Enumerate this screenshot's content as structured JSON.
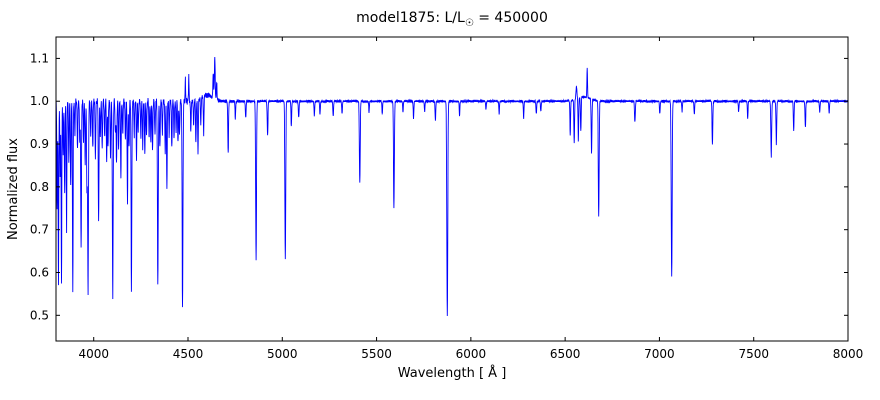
{
  "chart_data": {
    "type": "line",
    "title_prefix": "model1875: L/L",
    "title_sub": "☉",
    "title_suffix": " = 450000",
    "xlabel": "Wavelength [ Å ]",
    "ylabel": "Normalized flux",
    "xlim": [
      3800,
      8000
    ],
    "ylim": [
      0.44,
      1.15
    ],
    "xticks": [
      4000,
      4500,
      5000,
      5500,
      6000,
      6500,
      7000,
      7500,
      8000
    ],
    "yticks": [
      0.5,
      0.6,
      0.7,
      0.8,
      0.9,
      1.0,
      1.1
    ],
    "line_color": "#0000ff",
    "axis_color": "#000000",
    "background_color": "#ffffff",
    "continuum": 1.0,
    "noise": {
      "base": 0.003,
      "blue_extra": 0.0065,
      "transition": 4650,
      "transition_width": 80
    },
    "absorption_lines": [
      [
        3806,
        0.75,
        1.8
      ],
      [
        3813,
        0.57,
        1.8
      ],
      [
        3822,
        0.82,
        1.8
      ],
      [
        3829,
        0.58,
        1.8
      ],
      [
        3838,
        0.88,
        1.8
      ],
      [
        3846,
        0.78,
        1.8
      ],
      [
        3856,
        0.7,
        1.8
      ],
      [
        3868,
        0.86,
        1.8
      ],
      [
        3878,
        0.8,
        1.8
      ],
      [
        3889,
        0.56,
        1.8
      ],
      [
        3900,
        0.92,
        1.8
      ],
      [
        3914,
        0.89,
        1.8
      ],
      [
        3926,
        0.9,
        1.8
      ],
      [
        3933,
        0.66,
        2.0
      ],
      [
        3946,
        0.91,
        1.8
      ],
      [
        3955,
        0.85,
        1.8
      ],
      [
        3964,
        0.8,
        1.8
      ],
      [
        3970,
        0.55,
        2.2
      ],
      [
        3984,
        0.92,
        1.8
      ],
      [
        3995,
        0.89,
        1.8
      ],
      [
        4009,
        0.87,
        1.8
      ],
      [
        4026,
        0.72,
        2.0
      ],
      [
        4035,
        0.92,
        1.8
      ],
      [
        4045,
        0.89,
        1.8
      ],
      [
        4058,
        0.91,
        1.8
      ],
      [
        4069,
        0.86,
        1.8
      ],
      [
        4076,
        0.89,
        1.8
      ],
      [
        4089,
        0.87,
        1.8
      ],
      [
        4101,
        0.54,
        2.2
      ],
      [
        4115,
        0.92,
        1.8
      ],
      [
        4121,
        0.85,
        1.8
      ],
      [
        4132,
        0.89,
        1.8
      ],
      [
        4144,
        0.82,
        1.8
      ],
      [
        4154,
        0.92,
        1.8
      ],
      [
        4168,
        0.91,
        1.8
      ],
      [
        4179,
        0.76,
        1.8
      ],
      [
        4187,
        0.89,
        1.8
      ],
      [
        4200,
        0.56,
        2.0
      ],
      [
        4215,
        0.92,
        1.8
      ],
      [
        4227,
        0.87,
        1.8
      ],
      [
        4236,
        0.93,
        1.8
      ],
      [
        4250,
        0.91,
        1.8
      ],
      [
        4260,
        0.89,
        1.8
      ],
      [
        4271,
        0.88,
        1.8
      ],
      [
        4280,
        0.92,
        1.8
      ],
      [
        4294,
        0.91,
        1.8
      ],
      [
        4303,
        0.9,
        1.8
      ],
      [
        4312,
        0.88,
        1.8
      ],
      [
        4325,
        0.92,
        1.8
      ],
      [
        4340,
        0.57,
        2.2
      ],
      [
        4351,
        0.89,
        1.8
      ],
      [
        4364,
        0.92,
        1.8
      ],
      [
        4379,
        0.88,
        1.8
      ],
      [
        4388,
        0.8,
        1.8
      ],
      [
        4400,
        0.92,
        1.8
      ],
      [
        4414,
        0.89,
        1.8
      ],
      [
        4426,
        0.91,
        1.8
      ],
      [
        4437,
        0.93,
        1.8
      ],
      [
        4447,
        0.9,
        1.8
      ],
      [
        4455,
        0.92,
        1.8
      ],
      [
        4471,
        0.515,
        2.2
      ],
      [
        4515,
        0.93,
        1.8
      ],
      [
        4530,
        0.94,
        1.8
      ],
      [
        4542,
        0.9,
        1.8
      ],
      [
        4553,
        0.88,
        1.8
      ],
      [
        4568,
        0.94,
        1.8
      ],
      [
        4583,
        0.91,
        1.8
      ],
      [
        4713,
        0.88,
        2.0
      ],
      [
        4751,
        0.96,
        1.8
      ],
      [
        4806,
        0.96,
        1.8
      ],
      [
        4861,
        0.63,
        2.2
      ],
      [
        4922,
        0.92,
        2.0
      ],
      [
        5016,
        0.63,
        2.2
      ],
      [
        5048,
        0.94,
        1.8
      ],
      [
        5087,
        0.96,
        1.8
      ],
      [
        5170,
        0.965,
        1.8
      ],
      [
        5200,
        0.97,
        1.8
      ],
      [
        5270,
        0.965,
        1.8
      ],
      [
        5317,
        0.97,
        1.8
      ],
      [
        5411,
        0.81,
        2.2
      ],
      [
        5460,
        0.975,
        1.8
      ],
      [
        5530,
        0.97,
        1.8
      ],
      [
        5592,
        0.75,
        2.2
      ],
      [
        5640,
        0.975,
        1.8
      ],
      [
        5696,
        0.96,
        1.8
      ],
      [
        5755,
        0.975,
        1.8
      ],
      [
        5812,
        0.955,
        1.8
      ],
      [
        5875,
        0.5,
        2.5
      ],
      [
        5940,
        0.965,
        1.8
      ],
      [
        6080,
        0.98,
        1.8
      ],
      [
        6150,
        0.97,
        1.8
      ],
      [
        6280,
        0.96,
        1.8
      ],
      [
        6347,
        0.97,
        1.8
      ],
      [
        6371,
        0.975,
        1.8
      ],
      [
        6527,
        0.92,
        1.8
      ],
      [
        6548,
        0.9,
        1.8
      ],
      [
        6570,
        0.9,
        1.8
      ],
      [
        6583,
        0.92,
        1.8
      ],
      [
        6640,
        0.87,
        2.0
      ],
      [
        6678,
        0.73,
        2.2
      ],
      [
        6870,
        0.95,
        2.0
      ],
      [
        7002,
        0.97,
        1.8
      ],
      [
        7065,
        0.59,
        2.4
      ],
      [
        7120,
        0.975,
        1.8
      ],
      [
        7185,
        0.97,
        1.8
      ],
      [
        7281,
        0.9,
        2.0
      ],
      [
        7420,
        0.975,
        1.8
      ],
      [
        7468,
        0.96,
        1.8
      ],
      [
        7593,
        0.87,
        2.2
      ],
      [
        7620,
        0.9,
        2.0
      ],
      [
        7712,
        0.93,
        1.8
      ],
      [
        7774,
        0.94,
        2.0
      ],
      [
        7850,
        0.975,
        1.8
      ],
      [
        7900,
        0.97,
        1.8
      ]
    ],
    "emission_lines": [
      [
        4486,
        1.05,
        1.5
      ],
      [
        4504,
        1.06,
        1.5
      ],
      [
        4600,
        1.015,
        28
      ],
      [
        4634,
        1.06,
        2.0
      ],
      [
        4642,
        1.1,
        2.0
      ],
      [
        4652,
        1.04,
        2.0
      ],
      [
        6560,
        1.03,
        2.5
      ],
      [
        6600,
        1.01,
        35
      ],
      [
        6617,
        1.07,
        1.5
      ]
    ]
  }
}
